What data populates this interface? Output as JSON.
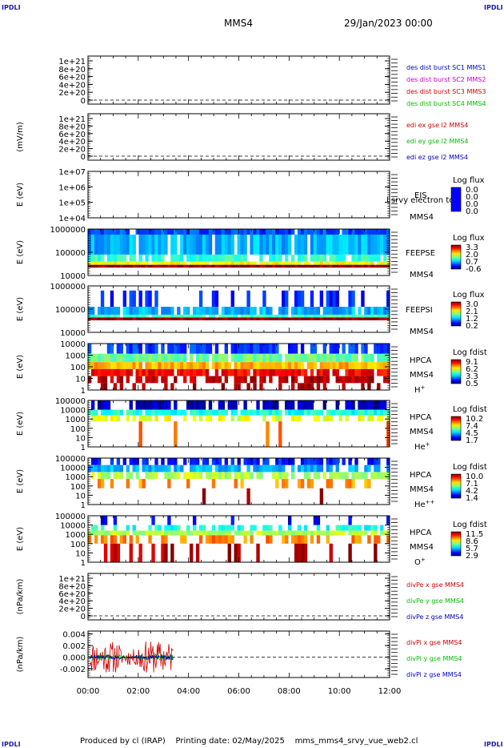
{
  "corner_label": "IPDLI",
  "header": {
    "spacecraft": "MMS4",
    "date": "29/Jan/2023 00:00"
  },
  "footer": {
    "produced_by": "Produced by cl (IRAP)",
    "printing_date": "Printing date: 02/May/2025",
    "script": "mms_mms4_srvy_vue_web2.cl"
  },
  "time_axis": {
    "ticks": [
      "00:00",
      "02:00",
      "04:00",
      "06:00",
      "08:00",
      "10:00",
      "12:00"
    ]
  },
  "colors": {
    "red": "#d00000",
    "magenta": "#d000d0",
    "green": "#00c000",
    "blue": "#0000c0"
  },
  "chart_data": [
    {
      "type": "line",
      "title": "",
      "ylabel": "",
      "yticks": [
        "1e+21",
        "8e+20",
        "6e+20",
        "4e+20",
        "2e+20",
        "0"
      ],
      "series": [
        {
          "name": "des dist burst SC1 MMS1",
          "color": "#0000c0"
        },
        {
          "name": "des dist burst SC2 MMS2",
          "color": "#d000d0"
        },
        {
          "name": "des dist burst SC3 MMS3",
          "color": "#d00000"
        },
        {
          "name": "des dist burst SC4 MMS4",
          "color": "#00c000"
        }
      ],
      "zero_line": true
    },
    {
      "type": "line",
      "ylabel": "(mV/m)",
      "yticks": [
        "1e+21",
        "8e+20",
        "6e+20",
        "4e+20",
        "2e+20",
        "0"
      ],
      "series": [
        {
          "name": "edi ex gse l2 MMS4",
          "color": "#d00000"
        },
        {
          "name": "edi ey gse l2 MMS4",
          "color": "#00c000"
        },
        {
          "name": "edi ez gse l2 MMS4",
          "color": "#0000c0"
        }
      ],
      "zero_line": true
    },
    {
      "type": "heatmap",
      "ylabel": "E (eV)",
      "yticks": [
        "1e+07",
        "1e+06",
        "1e+05",
        "1e+04"
      ],
      "instrument": "EIS",
      "spacecraft": "MMS4",
      "overlay_text": "l srvy electron to",
      "colorbar": {
        "title": "Log flux",
        "ticks": [
          "0.0",
          "0.0",
          "0.0",
          "0.0"
        ]
      },
      "empty": true
    },
    {
      "type": "heatmap",
      "ylabel": "E (eV)",
      "yticks": [
        "1000000",
        "100000",
        "10000"
      ],
      "instrument": "FEEPSE",
      "spacecraft": "MMS4",
      "colorbar": {
        "title": "Log flux",
        "ticks": [
          "3.3",
          "2.0",
          "0.7",
          "-0.6"
        ]
      }
    },
    {
      "type": "heatmap",
      "ylabel": "E (eV)",
      "yticks": [
        "1000000",
        "100000",
        "10000"
      ],
      "instrument": "FEEPSI",
      "spacecraft": "MMS4",
      "colorbar": {
        "title": "Log flux",
        "ticks": [
          "3.0",
          "2.1",
          "1.2",
          "0.2"
        ]
      }
    },
    {
      "type": "heatmap",
      "ylabel": "E (eV)",
      "yticks": [
        "10000",
        "1000",
        "100",
        "10",
        "1"
      ],
      "instrument": "HPCA",
      "spacecraft": "MMS4",
      "species": "H",
      "charge": "+",
      "colorbar": {
        "title": "Log fdist",
        "ticks": [
          "9.1",
          "6.2",
          "3.3",
          "0.5"
        ]
      }
    },
    {
      "type": "heatmap",
      "ylabel": "E (eV)",
      "yticks": [
        "100000",
        "10000",
        "1000",
        "100",
        "10",
        "1"
      ],
      "instrument": "HPCA",
      "spacecraft": "MMS4",
      "species": "He",
      "charge": "+",
      "colorbar": {
        "title": "Log fdist",
        "ticks": [
          "10.2",
          "7.4",
          "4.5",
          "1.7"
        ]
      }
    },
    {
      "type": "heatmap",
      "ylabel": "E (eV)",
      "yticks": [
        "100000",
        "10000",
        "1000",
        "100",
        "10",
        "1"
      ],
      "instrument": "HPCA",
      "spacecraft": "MMS4",
      "species": "He",
      "charge": "++",
      "colorbar": {
        "title": "Log fdist",
        "ticks": [
          "10.0",
          "7.1",
          "4.2",
          "1.4"
        ]
      }
    },
    {
      "type": "heatmap",
      "ylabel": "E (eV)",
      "yticks": [
        "100000",
        "10000",
        "1000",
        "100",
        "10",
        "1"
      ],
      "instrument": "HPCA",
      "spacecraft": "MMS4",
      "species": "O",
      "charge": "+",
      "colorbar": {
        "title": "Log fdist",
        "ticks": [
          "11.5",
          "8.6",
          "5.7",
          "2.9"
        ]
      }
    },
    {
      "type": "line",
      "ylabel": "(nPa/km)",
      "yticks": [
        "1e+21",
        "8e+20",
        "6e+20",
        "4e+20",
        "2e+20",
        "0"
      ],
      "series": [
        {
          "name": "divPe x gse MMS4",
          "color": "#d00000"
        },
        {
          "name": "divPe y gse MMS4",
          "color": "#00c000"
        },
        {
          "name": "divPe z gse MMS4",
          "color": "#0000c0"
        }
      ],
      "zero_line": true
    },
    {
      "type": "line",
      "ylabel": "(nPa/km)",
      "yticks": [
        "0.004",
        "0.002",
        "0.000",
        "-0.002"
      ],
      "ylim": [
        -0.0035,
        0.0045
      ],
      "series": [
        {
          "name": "divPi x gse MMS4",
          "color": "#d00000"
        },
        {
          "name": "divPi y gse MMS4",
          "color": "#00c000"
        },
        {
          "name": "divPi z gse MMS4",
          "color": "#0000c0"
        }
      ],
      "data_end_hour": 3.4,
      "zero_line": true
    }
  ]
}
